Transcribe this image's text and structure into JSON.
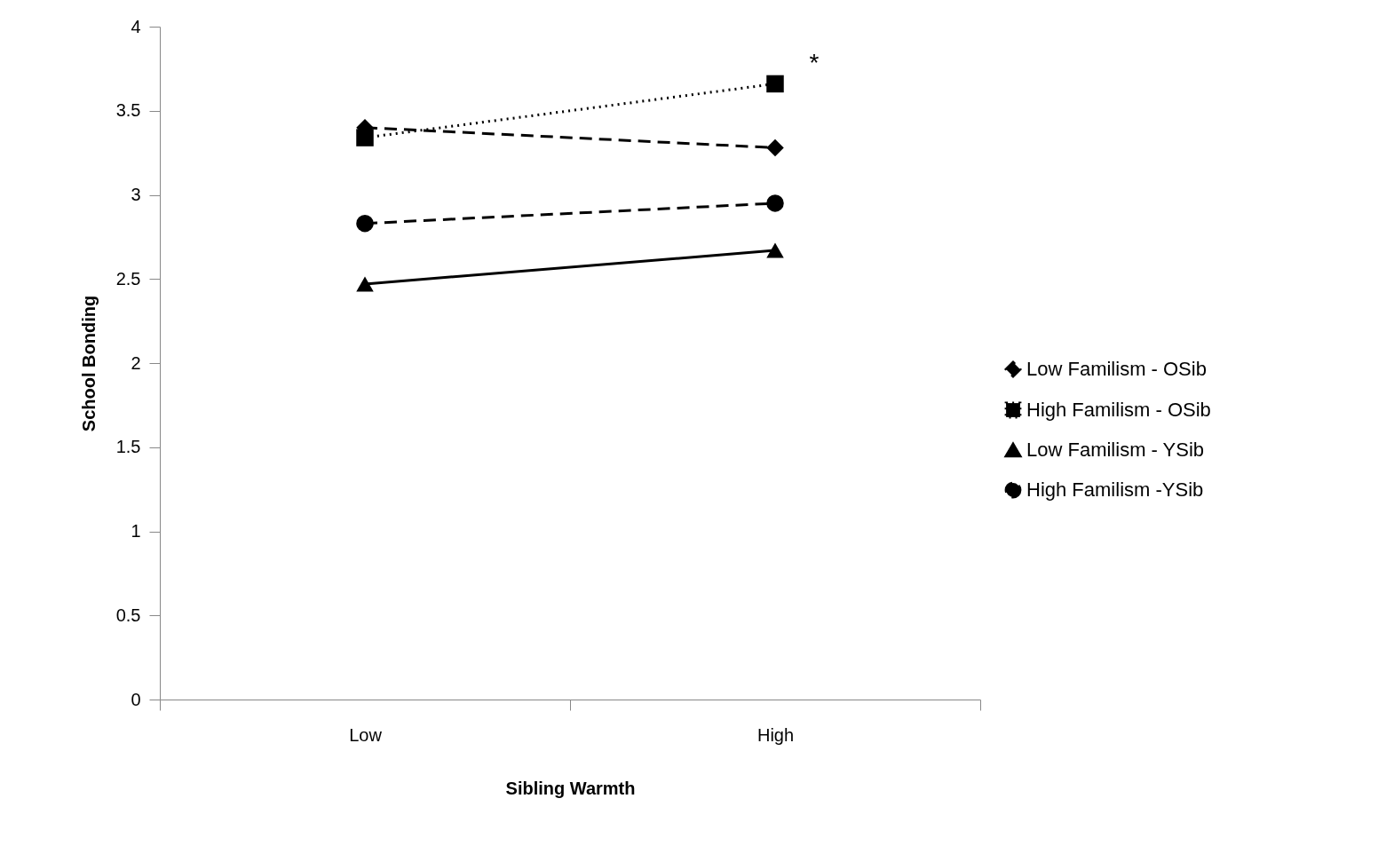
{
  "chart_data": {
    "type": "line",
    "xlabel": "Sibling Warmth",
    "ylabel": "School Bonding",
    "categories": [
      "Low",
      "High"
    ],
    "series": [
      {
        "name": "Low Familism - OSib",
        "color": "#000000",
        "values": [
          3.4,
          3.28
        ],
        "marker": "diamond",
        "line_style": "dashed"
      },
      {
        "name": "High Familism - OSib",
        "color": "#000000",
        "values": [
          3.34,
          3.66
        ],
        "marker": "square",
        "line_style": "dotted"
      },
      {
        "name": "Low Familism - YSib",
        "color": "#000000",
        "values": [
          2.47,
          2.67
        ],
        "marker": "triangle",
        "line_style": "solid"
      },
      {
        "name": "High Familism -YSib",
        "color": "#000000",
        "values": [
          2.83,
          2.95
        ],
        "marker": "circle",
        "line_style": "dashed"
      }
    ],
    "ylim": [
      0,
      4
    ],
    "yticks": [
      0,
      0.5,
      1,
      1.5,
      2,
      2.5,
      3,
      3.5,
      4
    ],
    "grid": false,
    "legend": "right",
    "annotations": [
      {
        "text": "*",
        "x": "High",
        "y": 3.66
      }
    ]
  }
}
